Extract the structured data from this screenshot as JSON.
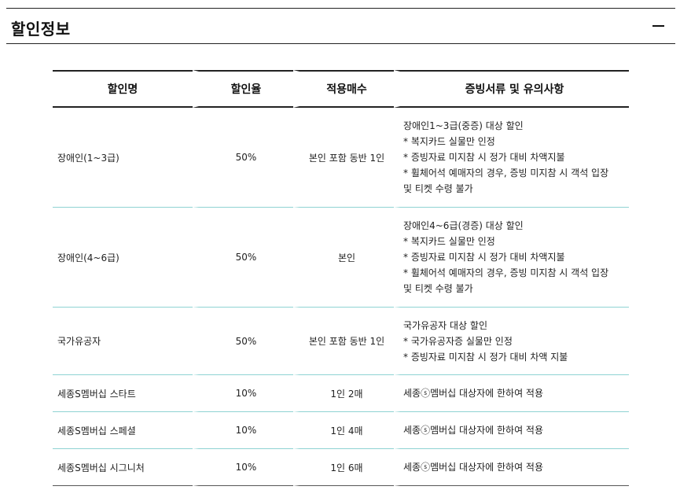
{
  "section": {
    "title": "할인정보",
    "collapse_icon": "minus-icon"
  },
  "table": {
    "headers": [
      "할인명",
      "할인율",
      "적용매수",
      "증빙서류 및 유의사항"
    ],
    "rows": [
      {
        "name": "장애인(1~3급)",
        "rate": "50%",
        "count": "본인 포함 동반 1인",
        "notes": [
          "장애인1~3급(중증) 대상 할인",
          "* 복지카드 실물만 인정",
          "* 증빙자료 미지참 시 정가 대비 차액지불",
          "* 휠체어석 예매자의 경우, 증빙 미지참 시 객석 입장",
          "및 티켓 수령 불가"
        ]
      },
      {
        "name": "장애인(4~6급)",
        "rate": "50%",
        "count": "본인",
        "notes": [
          "장애인4~6급(경증) 대상 할인",
          "* 복지카드 실물만 인정",
          "* 증빙자료 미지참 시 정가 대비 차액지불",
          "* 휠체어석 예매자의 경우, 증빙 미지참 시 객석 입장",
          "및 티켓 수령 불가"
        ]
      },
      {
        "name": "국가유공자",
        "rate": "50%",
        "count": "본인 포함 동반 1인",
        "notes": [
          "국가유공자 대상 할인",
          "* 국가유공자증 실물만 인정",
          "* 증빙자료 미지참 시 정가 대비 차액 지불"
        ]
      },
      {
        "name": "세종S멤버십 스타트",
        "rate": "10%",
        "count": "1인 2매",
        "notes": [
          "세종ⓢ멤버십 대상자에 한하여 적용"
        ]
      },
      {
        "name": "세종S멤버십 스페셜",
        "rate": "10%",
        "count": "1인 4매",
        "notes": [
          "세종ⓢ멤버십 대상자에 한하여 적용"
        ]
      },
      {
        "name": "세종S멤버십 시그니처",
        "rate": "10%",
        "count": "1인 6매",
        "notes": [
          "세종ⓢ멤버십 대상자에 한하여 적용"
        ]
      }
    ]
  }
}
